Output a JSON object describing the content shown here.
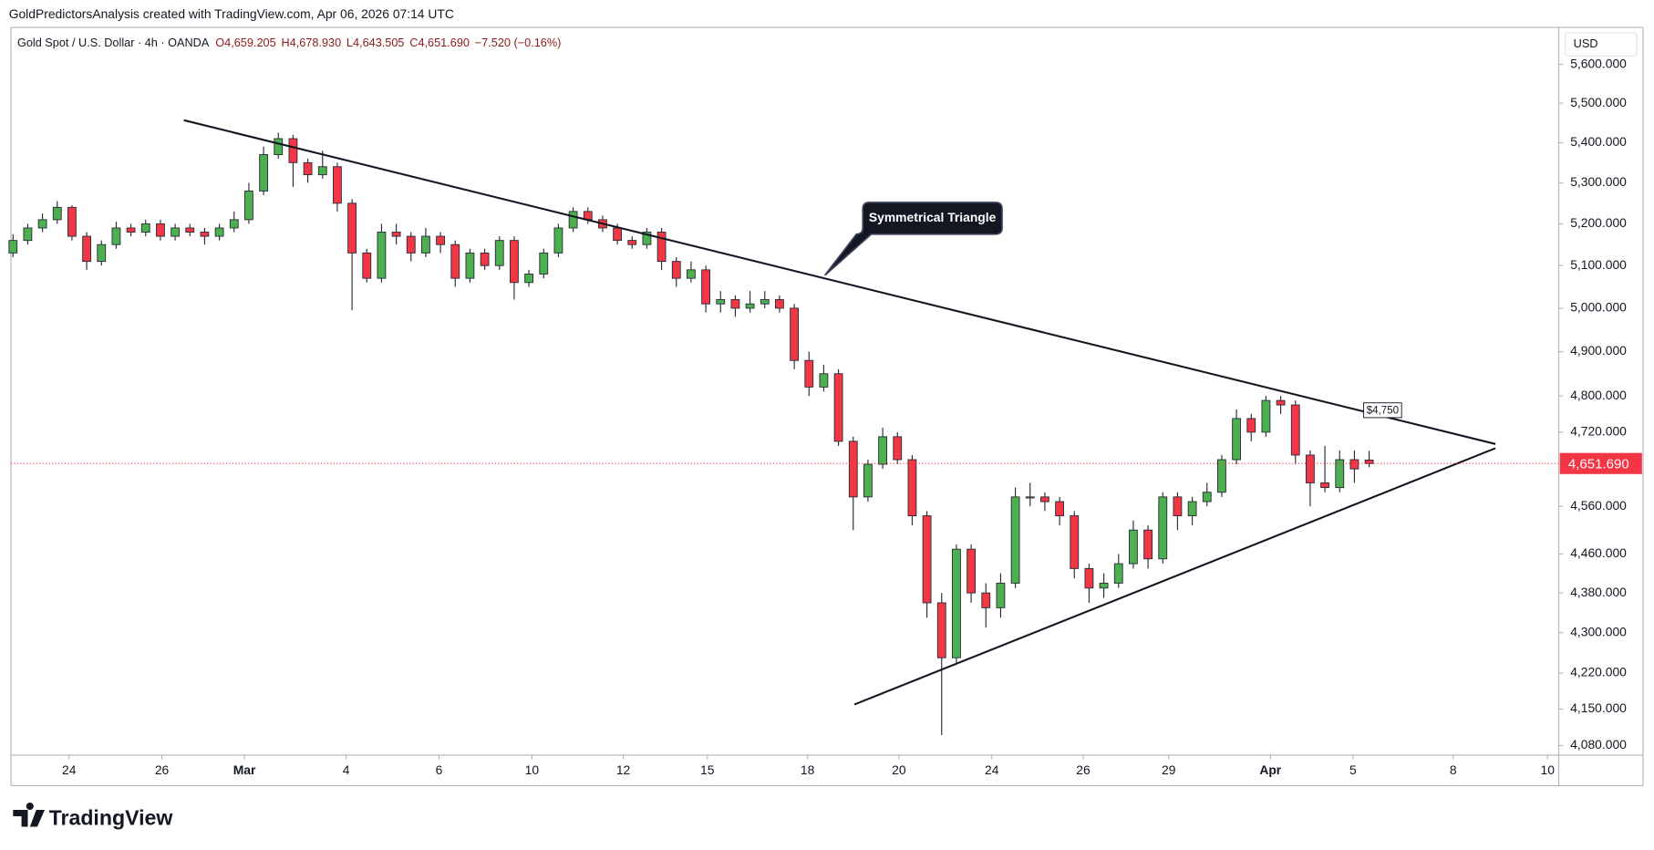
{
  "chart_data": {
    "type": "candlestick",
    "header": "GoldPredictorsAnalysis created with TradingView.com, Apr 06, 2026 07:14 UTC",
    "legend": [
      "Gold Spot / U.S. Dollar · 4h · OANDA",
      "O4,659.205",
      "H4,678.930",
      "L4,643.505",
      "C4,651.690",
      "−7.520 (−0.16%)"
    ],
    "currency": "USD",
    "logo": "TradingView",
    "log_scale": true,
    "up_color": "#4caf50",
    "down_color": "#f23645",
    "open": [
      5130,
      5160,
      5190,
      5210,
      5240,
      5170,
      5110,
      5150,
      5190,
      5180,
      5200,
      5170,
      5190,
      5180,
      5170,
      5190,
      5210,
      5280,
      5370,
      5410,
      5350,
      5320,
      5340,
      5250,
      5130,
      5070,
      5180,
      5170,
      5130,
      5170,
      5150,
      5070,
      5130,
      5100,
      5160,
      5060,
      5080,
      5130,
      5190,
      5230,
      5210,
      5190,
      5160,
      5150,
      5180,
      5110,
      5070,
      5090,
      5010,
      5020,
      5000,
      5010,
      5020,
      5000,
      4880,
      4820,
      4850,
      4700,
      4580,
      4650,
      4710,
      4660,
      4540,
      4360,
      4250,
      4470,
      4380,
      4350,
      4400,
      4580,
      4580,
      4570,
      4540,
      4430,
      4390,
      4400,
      4440,
      4510,
      4450,
      4580,
      4540,
      4570,
      4590,
      4660,
      4750,
      4720,
      4790,
      4780,
      4670,
      4610,
      4600,
      4660,
      4659.205
    ],
    "high": [
      5175,
      5200,
      5225,
      5255,
      5245,
      5180,
      5160,
      5205,
      5200,
      5210,
      5210,
      5200,
      5200,
      5190,
      5200,
      5230,
      5300,
      5390,
      5425,
      5420,
      5360,
      5380,
      5350,
      5260,
      5140,
      5200,
      5200,
      5180,
      5190,
      5180,
      5160,
      5140,
      5140,
      5170,
      5170,
      5090,
      5140,
      5200,
      5240,
      5240,
      5220,
      5200,
      5170,
      5190,
      5190,
      5120,
      5110,
      5100,
      5040,
      5030,
      5040,
      5040,
      5030,
      5010,
      4900,
      4870,
      4860,
      4710,
      4660,
      4730,
      4720,
      4670,
      4550,
      4380,
      4480,
      4480,
      4400,
      4420,
      4600,
      4610,
      4590,
      4580,
      4550,
      4440,
      4420,
      4460,
      4530,
      4520,
      4590,
      4590,
      4580,
      4610,
      4670,
      4770,
      4760,
      4800,
      4800,
      4790,
      4680,
      4690,
      4680,
      4680,
      4678.93
    ],
    "low": [
      5120,
      5150,
      5180,
      5200,
      5160,
      5090,
      5100,
      5140,
      5170,
      5170,
      5160,
      5160,
      5170,
      5150,
      5160,
      5180,
      5200,
      5270,
      5360,
      5290,
      5300,
      5310,
      5230,
      4995,
      5060,
      5060,
      5150,
      5110,
      5120,
      5130,
      5050,
      5060,
      5090,
      5090,
      5020,
      5050,
      5070,
      5120,
      5180,
      5200,
      5180,
      5150,
      5140,
      5140,
      5090,
      5050,
      5060,
      4990,
      4990,
      4980,
      4990,
      5000,
      4990,
      4860,
      4800,
      4810,
      4690,
      4510,
      4570,
      4640,
      4650,
      4520,
      4330,
      4100,
      4240,
      4360,
      4310,
      4330,
      4390,
      4560,
      4550,
      4520,
      4410,
      4360,
      4370,
      4390,
      4430,
      4430,
      4440,
      4510,
      4520,
      4560,
      4580,
      4650,
      4700,
      4710,
      4760,
      4650,
      4560,
      4590,
      4590,
      4610,
      4643.505
    ],
    "close": [
      5160,
      5190,
      5210,
      5240,
      5170,
      5110,
      5150,
      5190,
      5180,
      5200,
      5170,
      5190,
      5180,
      5170,
      5190,
      5210,
      5280,
      5370,
      5410,
      5350,
      5320,
      5340,
      5250,
      5130,
      5070,
      5180,
      5170,
      5130,
      5170,
      5150,
      5070,
      5130,
      5100,
      5160,
      5060,
      5080,
      5130,
      5190,
      5230,
      5210,
      5190,
      5160,
      5150,
      5180,
      5110,
      5070,
      5090,
      5010,
      5020,
      5000,
      5010,
      5020,
      5000,
      4880,
      4820,
      4850,
      4700,
      4580,
      4650,
      4710,
      4660,
      4540,
      4360,
      4250,
      4470,
      4380,
      4350,
      4400,
      4580,
      4580,
      4570,
      4540,
      4430,
      4390,
      4400,
      4440,
      4510,
      4450,
      4580,
      4540,
      4570,
      4590,
      4660,
      4750,
      4720,
      4790,
      4780,
      4670,
      4610,
      4600,
      4660,
      4640,
      4651.69
    ],
    "ylim": [
      4062,
      5686
    ],
    "yticks": [
      {
        "value": 5600,
        "label": "5,600.000"
      },
      {
        "value": 5500,
        "label": "5,500.000"
      },
      {
        "value": 5400,
        "label": "5,400.000"
      },
      {
        "value": 5300,
        "label": "5,300.000"
      },
      {
        "value": 5200,
        "label": "5,200.000"
      },
      {
        "value": 5100,
        "label": "5,100.000"
      },
      {
        "value": 5000,
        "label": "5,000.000"
      },
      {
        "value": 4900,
        "label": "4,900.000"
      },
      {
        "value": 4800,
        "label": "4,800.000"
      },
      {
        "value": 4720,
        "label": "4,720.000"
      },
      {
        "value": 4560,
        "label": "4,560.000"
      },
      {
        "value": 4460,
        "label": "4,460.000"
      },
      {
        "value": 4380,
        "label": "4,380.000"
      },
      {
        "value": 4300,
        "label": "4,300.000"
      },
      {
        "value": 4220,
        "label": "4,220.000"
      },
      {
        "value": 4150,
        "label": "4,150.000"
      },
      {
        "value": 4080,
        "label": "4,080.000"
      }
    ],
    "xlim": [
      -0.14,
      104.86
    ],
    "xticks": [
      {
        "value": 3.8,
        "label": "24"
      },
      {
        "value": 10.1,
        "label": "26"
      },
      {
        "value": 15.7,
        "label": "Mar"
      },
      {
        "value": 22.6,
        "label": "4"
      },
      {
        "value": 28.9,
        "label": "6"
      },
      {
        "value": 35.2,
        "label": "10"
      },
      {
        "value": 41.4,
        "label": "12"
      },
      {
        "value": 47.1,
        "label": "15"
      },
      {
        "value": 53.9,
        "label": "18"
      },
      {
        "value": 60.1,
        "label": "20"
      },
      {
        "value": 66.4,
        "label": "24"
      },
      {
        "value": 72.6,
        "label": "26"
      },
      {
        "value": 78.4,
        "label": "29"
      },
      {
        "value": 85.3,
        "label": "Apr"
      },
      {
        "value": 90.9,
        "label": "5"
      },
      {
        "value": 97.7,
        "label": "8"
      },
      {
        "value": 104.1,
        "label": "10"
      }
    ],
    "last_price": {
      "value": 4651.69,
      "label": "4,651.690"
    },
    "annotations": {
      "callout": "Symmetrical Triangle",
      "level_label": "$4,750"
    }
  }
}
